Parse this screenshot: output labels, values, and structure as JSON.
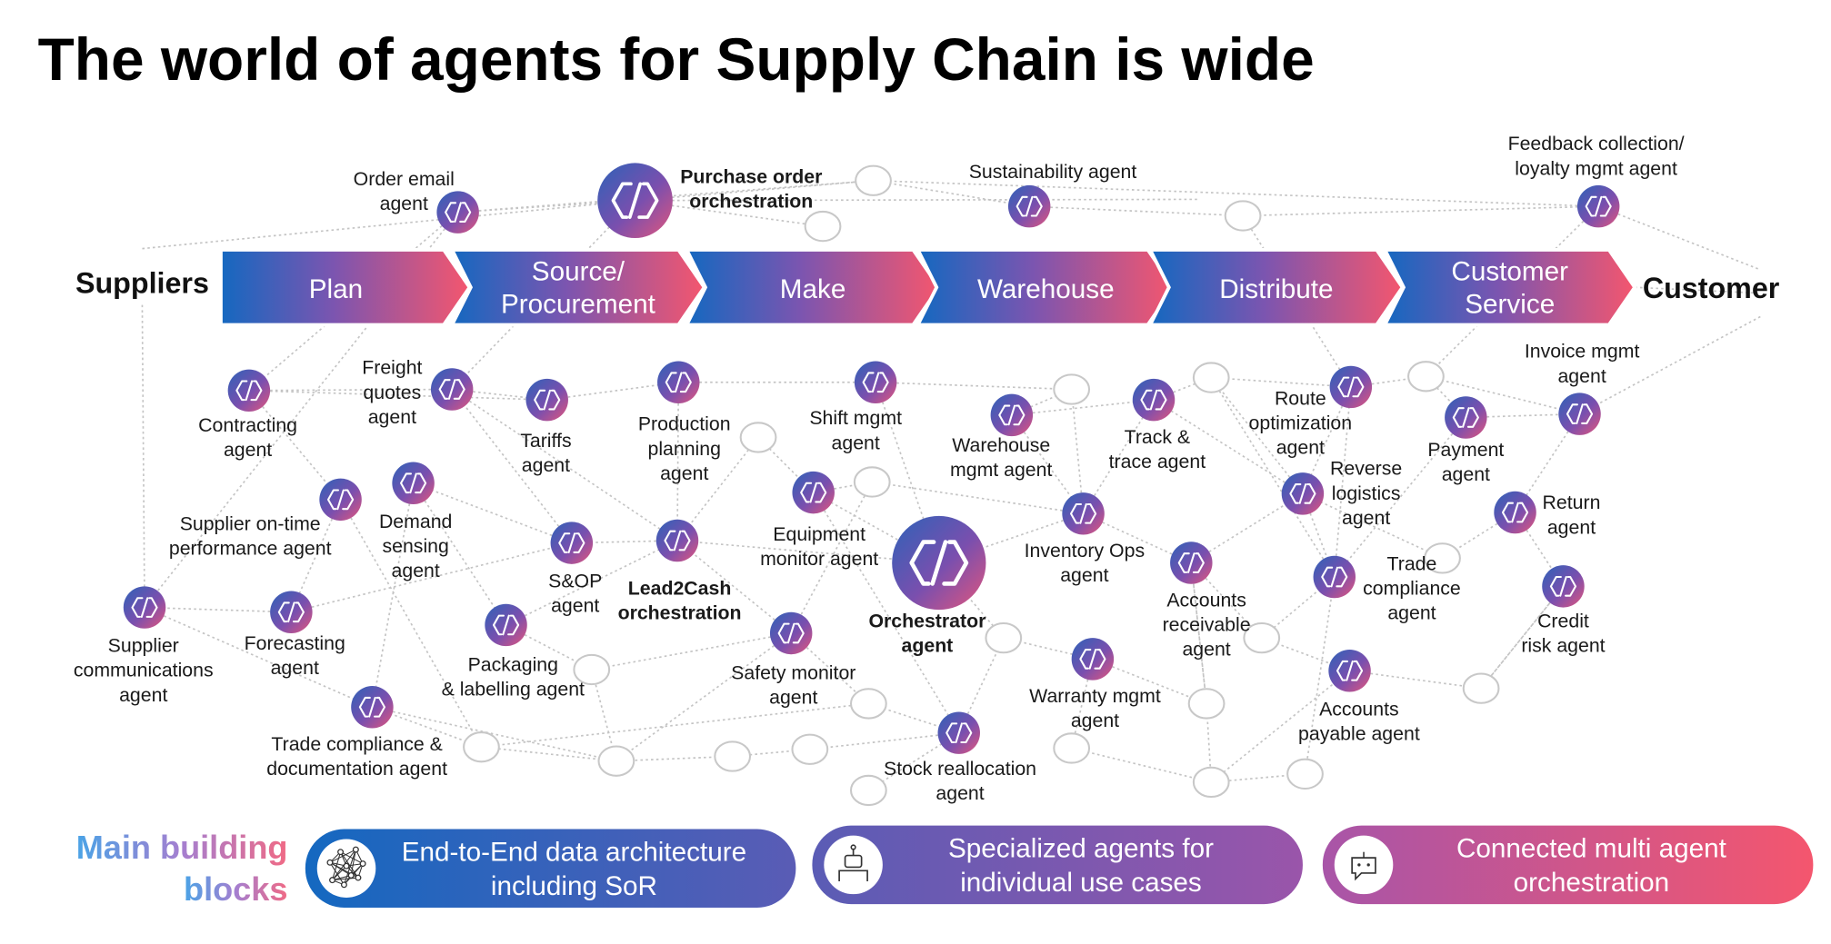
{
  "title": "The world of agents for Supply Chain is wide",
  "ends": {
    "left": "Suppliers",
    "right": "Customer"
  },
  "stages": [
    {
      "lines": [
        "Plan"
      ]
    },
    {
      "lines": [
        "Source/",
        "Procurement"
      ]
    },
    {
      "lines": [
        "Make"
      ]
    },
    {
      "lines": [
        "Warehouse"
      ]
    },
    {
      "lines": [
        "Distribute"
      ]
    },
    {
      "lines": [
        "Customer",
        "Service"
      ]
    }
  ],
  "agents": [
    {
      "lines": [
        "Order email",
        "agent"
      ]
    },
    {
      "lines": [
        "Purchase order",
        "orchestration"
      ],
      "bold": true
    },
    {
      "lines": [
        "Sustainability agent"
      ]
    },
    {
      "lines": [
        "Feedback collection/",
        "loyalty mgmt agent"
      ]
    },
    {
      "lines": [
        "Contracting",
        "agent"
      ]
    },
    {
      "lines": [
        "Freight",
        "quotes",
        "agent"
      ]
    },
    {
      "lines": [
        "Tariffs",
        "agent"
      ]
    },
    {
      "lines": [
        "Production",
        "planning",
        "agent"
      ]
    },
    {
      "lines": [
        "Shift mgmt",
        "agent"
      ]
    },
    {
      "lines": [
        "Warehouse",
        "mgmt agent"
      ]
    },
    {
      "lines": [
        "Track &",
        "trace agent"
      ]
    },
    {
      "lines": [
        "Route",
        "optimization",
        "agent"
      ]
    },
    {
      "lines": [
        "Payment",
        "agent"
      ]
    },
    {
      "lines": [
        "Invoice mgmt",
        "agent"
      ]
    },
    {
      "lines": [
        "Supplier on-time",
        "performance agent"
      ]
    },
    {
      "lines": [
        "Demand",
        "sensing",
        "agent"
      ]
    },
    {
      "lines": [
        "S&OP",
        "agent"
      ]
    },
    {
      "lines": [
        "Lead2Cash",
        "orchestration"
      ],
      "bold": true
    },
    {
      "lines": [
        "Equipment",
        "monitor agent"
      ]
    },
    {
      "lines": [
        "Orchestrator",
        "agent"
      ],
      "bold": true
    },
    {
      "lines": [
        "Inventory Ops",
        "agent"
      ]
    },
    {
      "lines": [
        "Reverse",
        "logistics",
        "agent"
      ]
    },
    {
      "lines": [
        "Return",
        "agent"
      ]
    },
    {
      "lines": [
        "Supplier",
        "communications",
        "agent"
      ]
    },
    {
      "lines": [
        "Forecasting",
        "agent"
      ]
    },
    {
      "lines": [
        "Packaging",
        "& labelling agent"
      ]
    },
    {
      "lines": [
        "Safety monitor",
        "agent"
      ]
    },
    {
      "lines": [
        "Accounts",
        "receivable",
        "agent"
      ]
    },
    {
      "lines": [
        "Trade",
        "compliance",
        "agent"
      ]
    },
    {
      "lines": [
        "Credit",
        "risk agent"
      ]
    },
    {
      "lines": [
        "Trade compliance &",
        "documentation agent"
      ]
    },
    {
      "lines": [
        "Warranty mgmt",
        "agent"
      ]
    },
    {
      "lines": [
        "Stock reallocation",
        "agent"
      ]
    },
    {
      "lines": [
        "Accounts",
        "payable agent"
      ]
    }
  ],
  "building_blocks": {
    "heading": [
      "Main building",
      "blocks"
    ],
    "blocks": [
      {
        "lines": [
          "End-to-End data architecture",
          "including SoR"
        ],
        "icon": "network-icon"
      },
      {
        "lines": [
          "Specialized agents for",
          "individual use cases"
        ],
        "icon": "robot-icon"
      },
      {
        "lines": [
          "Connected multi agent",
          "orchestration"
        ],
        "icon": "chat-bot-icon"
      }
    ]
  },
  "colors": {
    "blue": "#1468c0",
    "purple": "#7b55b0",
    "pink": "#f4566e",
    "edge": "#c4c4c4"
  }
}
